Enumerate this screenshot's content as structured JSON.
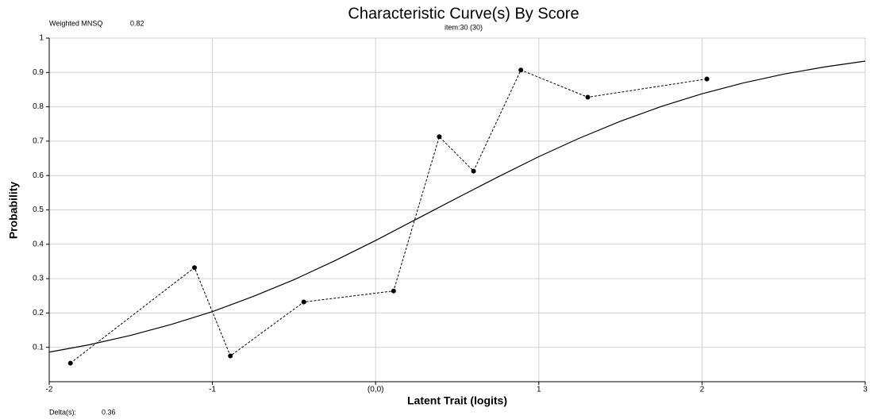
{
  "chart_data": {
    "type": "line",
    "title": "Characteristic Curve(s) By Score",
    "subtitle": "item:30 (30)",
    "annotations": {
      "fit_label": "Weighted MNSQ",
      "fit_value": "0.82",
      "delta_label": "Delta(s):",
      "delta_value": "0.36"
    },
    "xlabel": "Latent Trait (logits)",
    "ylabel": "Probability",
    "xlim": [
      -2,
      3
    ],
    "ylim": [
      0,
      1
    ],
    "xticks": [
      -2,
      -1,
      {
        "value": 0,
        "label": "(0,0)"
      },
      1,
      2,
      3
    ],
    "yticks": [
      0.1,
      0.2,
      0.3,
      0.4,
      0.5,
      0.6,
      0.7,
      0.8,
      0.9,
      1
    ],
    "grid": true,
    "series": [
      {
        "color": "#000000",
        "style": "solid",
        "markers": false,
        "x": [
          -2,
          -1.75,
          -1.5,
          -1.25,
          -1,
          -0.75,
          -0.5,
          -0.25,
          0,
          0.25,
          0.5,
          0.75,
          1,
          1.25,
          1.5,
          1.75,
          2,
          2.25,
          2.5,
          2.75,
          3
        ],
        "values": [
          0.086,
          0.108,
          0.135,
          0.167,
          0.204,
          0.248,
          0.297,
          0.352,
          0.411,
          0.473,
          0.535,
          0.596,
          0.655,
          0.709,
          0.758,
          0.801,
          0.838,
          0.869,
          0.895,
          0.916,
          0.933
        ]
      },
      {
        "color": "#000000",
        "style": "dashed",
        "markers": true,
        "x": [
          -1.87,
          -1.11,
          -0.89,
          -0.44,
          0.11,
          0.39,
          0.6,
          0.89,
          1.3,
          2.03
        ],
        "values": [
          0.054,
          0.332,
          0.075,
          0.232,
          0.264,
          0.713,
          0.613,
          0.907,
          0.828,
          0.881
        ]
      }
    ]
  }
}
